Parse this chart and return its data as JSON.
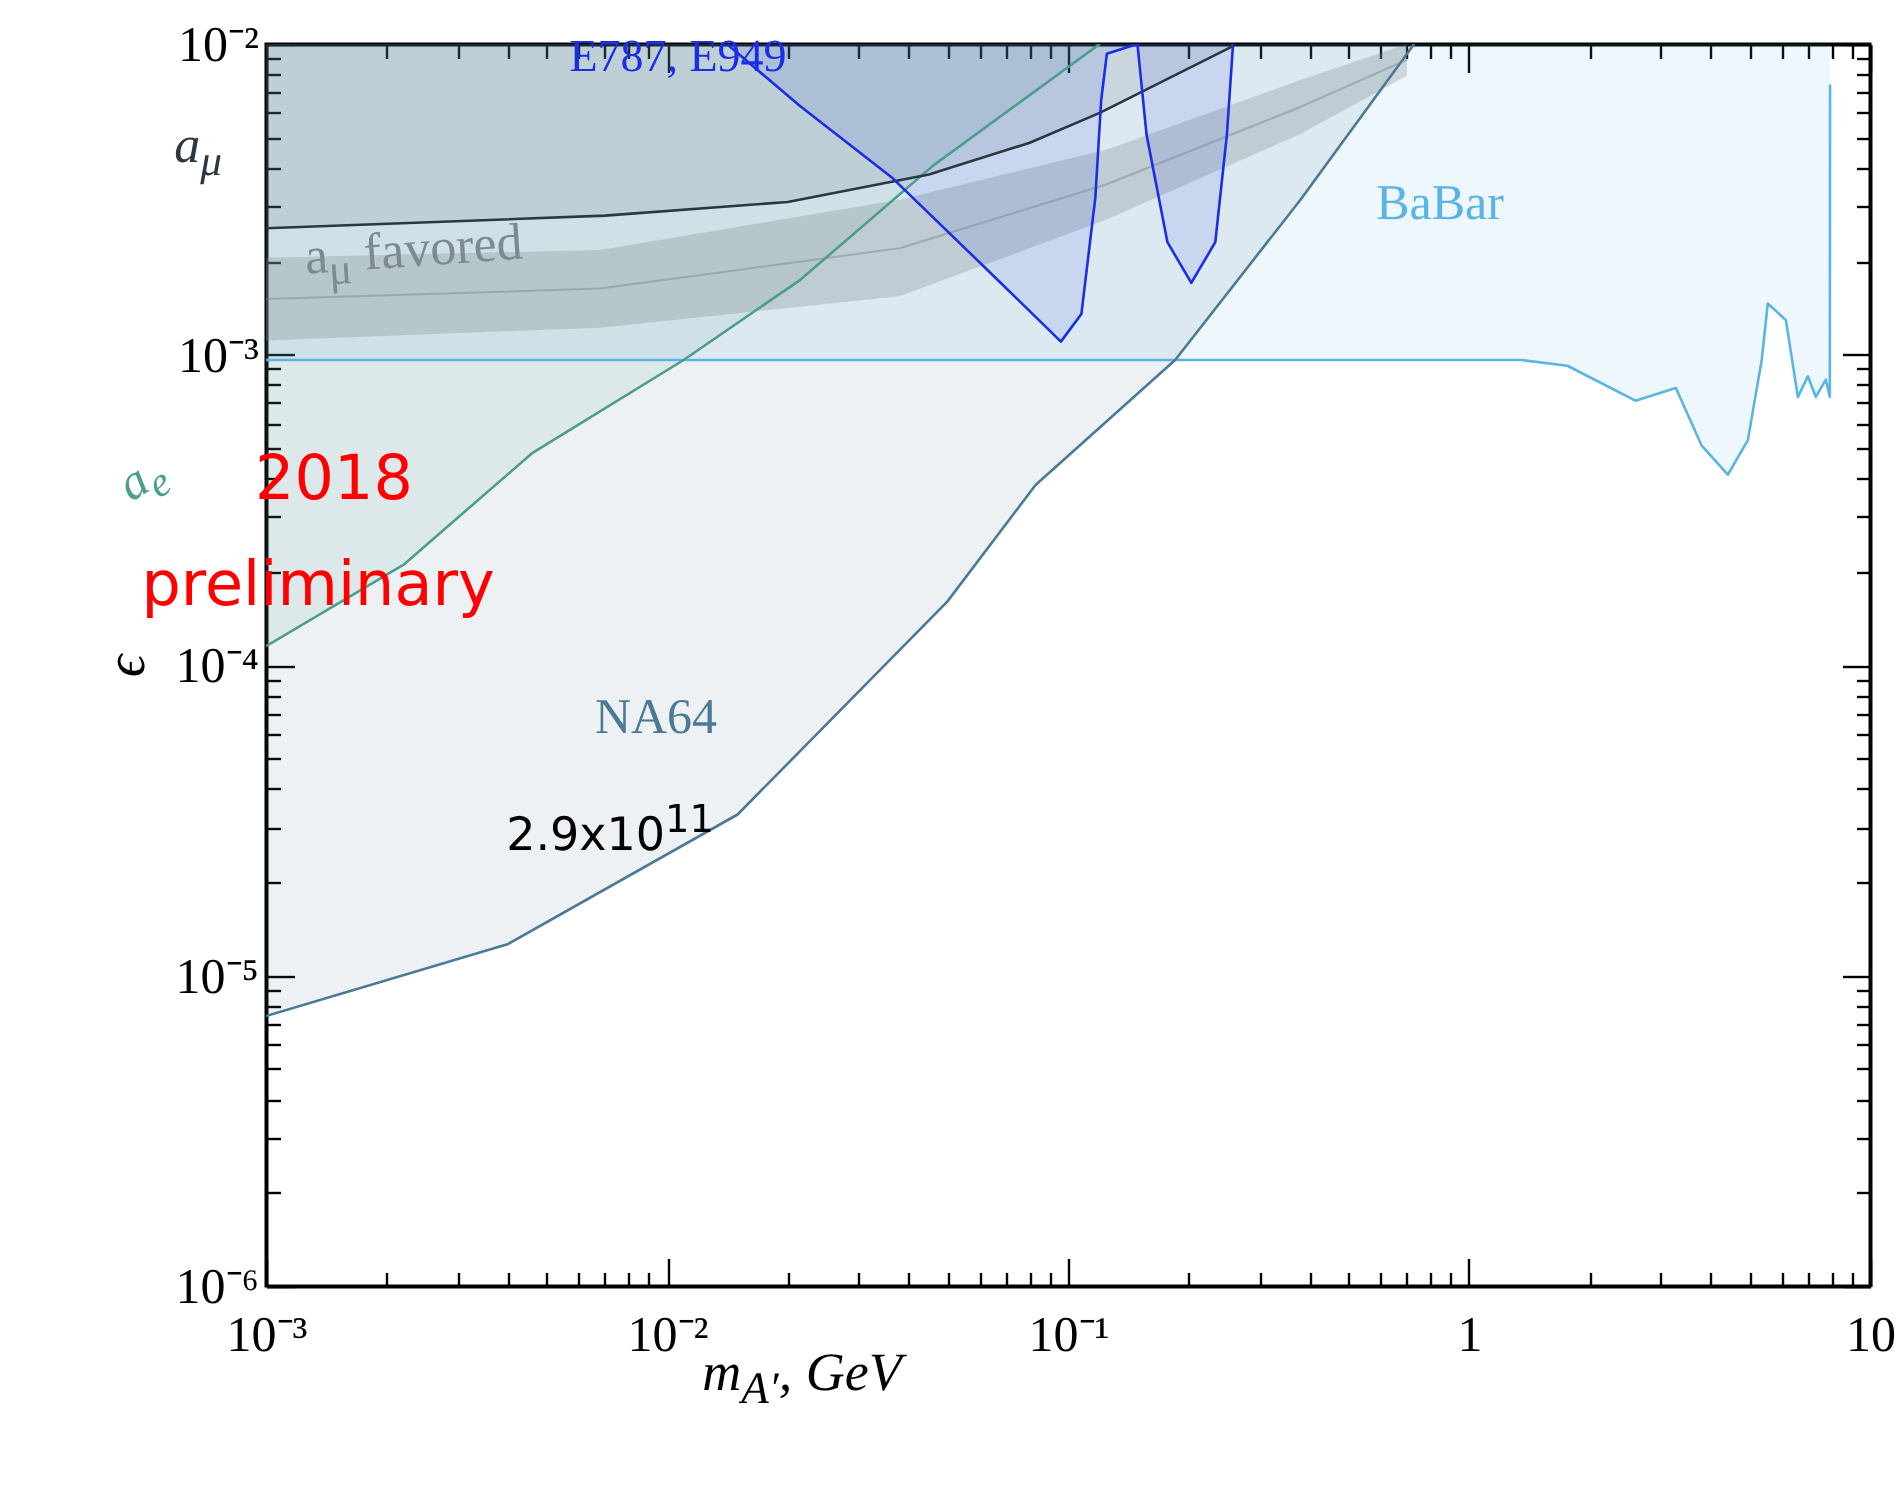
{
  "chart_data": {
    "type": "line",
    "xlabel": "m$_{A′}$, GeV",
    "ylabel": "ϵ",
    "log": "xy",
    "grid": false,
    "xlim": [
      0.001,
      10
    ],
    "ylim": [
      1e-06,
      0.01
    ],
    "xticks": [
      {
        "value": 0.001,
        "label": "10⁻³"
      },
      {
        "value": 0.002,
        "label": null
      },
      {
        "value": 0.003,
        "label": null
      },
      {
        "value": 0.004,
        "label": null
      },
      {
        "value": 0.005,
        "label": null
      },
      {
        "value": 0.006,
        "label": null
      },
      {
        "value": 0.007,
        "label": null
      },
      {
        "value": 0.008,
        "label": null
      },
      {
        "value": 0.009,
        "label": null
      },
      {
        "value": 0.01,
        "label": "10⁻²"
      },
      {
        "value": 0.02,
        "label": null
      },
      {
        "value": 0.03,
        "label": null
      },
      {
        "value": 0.04,
        "label": null
      },
      {
        "value": 0.05,
        "label": null
      },
      {
        "value": 0.06,
        "label": null
      },
      {
        "value": 0.07,
        "label": null
      },
      {
        "value": 0.08,
        "label": null
      },
      {
        "value": 0.09,
        "label": null
      },
      {
        "value": 0.1,
        "label": "10⁻¹"
      },
      {
        "value": 0.2,
        "label": null
      },
      {
        "value": 0.3,
        "label": null
      },
      {
        "value": 0.4,
        "label": null
      },
      {
        "value": 0.5,
        "label": null
      },
      {
        "value": 0.6,
        "label": null
      },
      {
        "value": 0.7,
        "label": null
      },
      {
        "value": 0.8,
        "label": null
      },
      {
        "value": 0.9,
        "label": null
      },
      1,
      {
        "value": 2,
        "label": null
      },
      {
        "value": 3,
        "label": null
      },
      {
        "value": 4,
        "label": null
      },
      {
        "value": 5,
        "label": null
      },
      {
        "value": 6,
        "label": null
      },
      {
        "value": 7,
        "label": null
      },
      {
        "value": 8,
        "label": null
      },
      {
        "value": 9,
        "label": null
      },
      10
    ],
    "yticks": [
      {
        "value": 1e-06,
        "label": "10⁻⁶"
      },
      {
        "value": 2e-06,
        "label": null
      },
      {
        "value": 3e-06,
        "label": null
      },
      {
        "value": 4e-06,
        "label": null
      },
      {
        "value": 5e-06,
        "label": null
      },
      {
        "value": 6e-06,
        "label": null
      },
      {
        "value": 7e-06,
        "label": null
      },
      {
        "value": 8e-06,
        "label": null
      },
      {
        "value": 9e-06,
        "label": null
      },
      {
        "value": 1e-05,
        "label": "10⁻⁵"
      },
      {
        "value": 2e-05,
        "label": null
      },
      {
        "value": 3e-05,
        "label": null
      },
      {
        "value": 4e-05,
        "label": null
      },
      {
        "value": 5e-05,
        "label": null
      },
      {
        "value": 6e-05,
        "label": null
      },
      {
        "value": 7e-05,
        "label": null
      },
      {
        "value": 8e-05,
        "label": null
      },
      {
        "value": 9e-05,
        "label": null
      },
      {
        "value": 0.0001,
        "label": "10⁻⁴"
      },
      {
        "value": 0.0002,
        "label": null
      },
      {
        "value": 0.0003,
        "label": null
      },
      {
        "value": 0.0004,
        "label": null
      },
      {
        "value": 0.0005,
        "label": null
      },
      {
        "value": 0.0006,
        "label": null
      },
      {
        "value": 0.0007,
        "label": null
      },
      {
        "value": 0.0008,
        "label": null
      },
      {
        "value": 0.0009,
        "label": null
      },
      {
        "value": 0.001,
        "label": "10⁻³"
      },
      {
        "value": 0.002,
        "label": null
      },
      {
        "value": 0.003,
        "label": null
      },
      {
        "value": 0.004,
        "label": null
      },
      {
        "value": 0.005,
        "label": null
      },
      {
        "value": 0.006,
        "label": null
      },
      {
        "value": 0.007,
        "label": null
      },
      {
        "value": 0.008,
        "label": null
      },
      {
        "value": 0.009,
        "label": null
      },
      {
        "value": 0.01,
        "label": "10⁻²"
      }
    ],
    "series": [
      {
        "name": "BaBar",
        "color": "#5ab4e5",
        "x": [
          0.001,
          1.35,
          1.76,
          2.6,
          3.28,
          3.8,
          4.42,
          4.96,
          5.37,
          5.56,
          6.17,
          6.61,
          7.0,
          7.33,
          7.76,
          7.94,
          7.95
        ],
        "values": [
          0.00096,
          0.00096,
          0.00092,
          0.00071,
          0.00078,
          0.00051,
          0.00041,
          0.00053,
          0.00096,
          0.00146,
          0.00129,
          0.00073,
          0.00085,
          0.00073,
          0.00083,
          0.00073,
          0.0074
        ]
      },
      {
        "name": "NA64",
        "color": "#4a7a95",
        "x": [
          0.001,
          0.004,
          0.015,
          0.05,
          0.083,
          0.185,
          0.38,
          0.73
        ],
        "values": [
          7.4e-06,
          1.26e-05,
          3.3e-05,
          0.00016,
          0.00038,
          0.00096,
          0.00315,
          0.01
        ]
      },
      {
        "name": "a$_{e}$",
        "color": "#4a9e8a",
        "x": [
          0.001,
          0.0022,
          0.0046,
          0.011,
          0.0215,
          0.046,
          0.12
        ],
        "values": [
          0.000115,
          0.00021,
          0.00048,
          0.00096,
          0.00174,
          0.00405,
          0.01
        ]
      },
      {
        "name": "a$_{μ}$",
        "color": "#2d3740",
        "x": [
          0.001,
          0.007,
          0.02,
          0.045,
          0.08,
          0.12,
          0.26
        ],
        "values": [
          0.00255,
          0.0028,
          0.0031,
          0.0038,
          0.0048,
          0.006,
          0.0099
        ]
      },
      {
        "name": "a$_{μ}$ favored",
        "color": "#7d8a92",
        "x": [
          0.001,
          0.0068,
          0.038,
          0.124,
          0.38,
          0.7
        ],
        "values": [
          0.00151,
          0.00163,
          0.0022,
          0.00352,
          0.00627,
          0.00889
        ],
        "lower": [
          0.00111,
          0.00122,
          0.00154,
          0.00271,
          0.00513,
          0.0079
        ],
        "upper": [
          0.00205,
          0.00217,
          0.00315,
          0.00456,
          0.00766,
          0.01
        ]
      },
      {
        "name": "E787, E949",
        "color": "#1a2ee6",
        "x": [
          0.0141,
          0.0215,
          0.0365,
          0.068,
          0.096,
          0.108,
          0.117,
          0.121,
          0.125,
          0.149,
          0.157,
          0.177,
          0.203,
          0.233,
          0.249,
          0.258
        ],
        "values": [
          0.01,
          0.0063,
          0.0037,
          0.0017,
          0.0011,
          0.00135,
          0.0032,
          0.0066,
          0.0093,
          0.01,
          0.0051,
          0.0023,
          0.0017,
          0.0023,
          0.0051,
          0.01
        ]
      }
    ],
    "annotations": [
      "2.9x10$^{11}$",
      "2018",
      "preliminary"
    ]
  }
}
